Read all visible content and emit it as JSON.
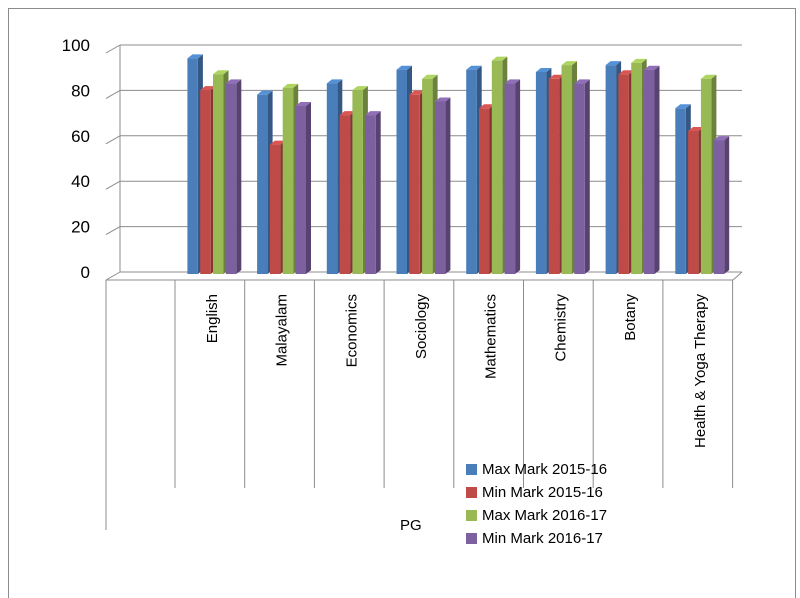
{
  "chart_data": {
    "type": "bar",
    "categories": [
      "English",
      "Malayalam",
      "Economics",
      "Sociology",
      "Mathematics",
      "Chemistry",
      "Botany",
      "Health & Yoga Therapy"
    ],
    "group_label": "PG",
    "series": [
      {
        "name": "Max Mark 2015-16",
        "color": "#4a7ebb",
        "values": [
          95,
          79,
          84,
          90,
          90,
          89,
          92,
          73
        ]
      },
      {
        "name": "Min Mark 2015-16",
        "color": "#be4b48",
        "values": [
          81,
          57,
          70,
          79,
          73,
          86,
          88,
          63
        ]
      },
      {
        "name": "Max Mark 2016-17",
        "color": "#98b954",
        "values": [
          88,
          82,
          81,
          86,
          94,
          92,
          93,
          86
        ]
      },
      {
        "name": "Min Mark 2016-17",
        "color": "#7d60a0",
        "values": [
          84,
          74,
          70,
          76,
          84,
          84,
          90,
          59
        ]
      }
    ],
    "ylim": [
      0,
      100
    ],
    "yticks": [
      "0",
      "20",
      "40",
      "60",
      "80",
      "100"
    ],
    "grid": true,
    "legend": "bottom-right"
  }
}
